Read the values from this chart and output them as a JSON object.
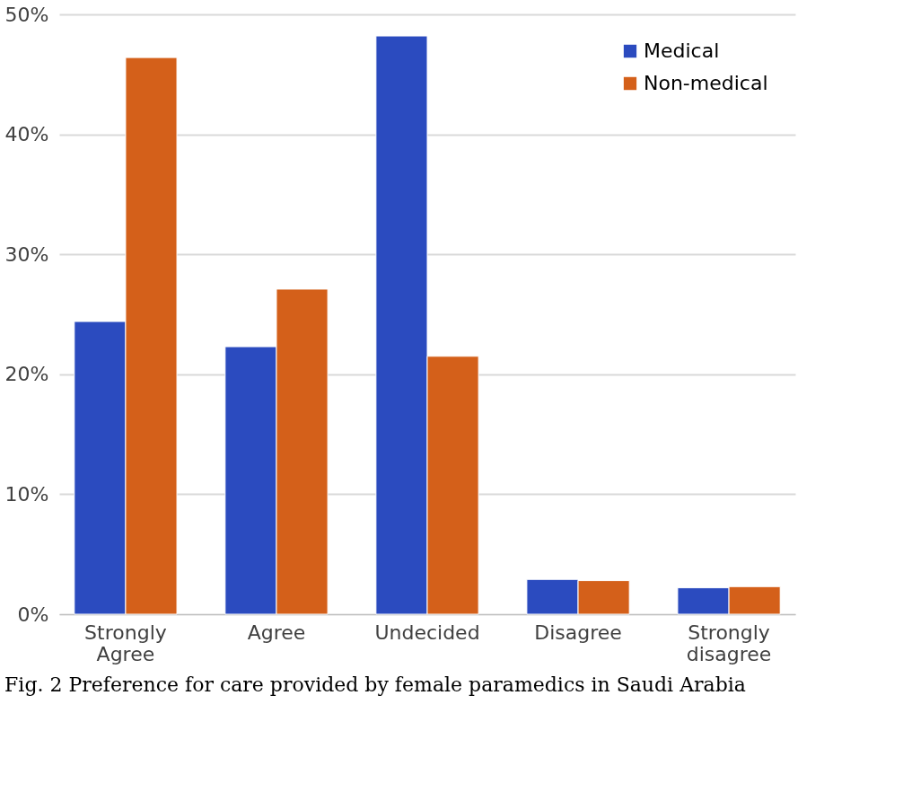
{
  "chart_data": {
    "type": "bar",
    "categories": [
      "Strongly Agree",
      "Agree",
      "Undecided",
      "Disagree",
      "Strongly disagree"
    ],
    "series": [
      {
        "name": "Medical",
        "color": "#2b4bbf",
        "values": [
          24.4,
          22.3,
          48.2,
          2.9,
          2.2
        ]
      },
      {
        "name": "Non-medical",
        "color": "#d4601a",
        "values": [
          46.4,
          27.1,
          21.5,
          2.8,
          2.3
        ]
      }
    ],
    "ylim": [
      0,
      50
    ],
    "yticks": [
      {
        "value": 0,
        "label": "0%"
      },
      {
        "value": 10,
        "label": "10%"
      },
      {
        "value": 20,
        "label": "20%"
      },
      {
        "value": 30,
        "label": "30%"
      },
      {
        "value": 40,
        "label": "40%"
      },
      {
        "value": 50,
        "label": "50%"
      }
    ],
    "grid": "y",
    "legend": "top right",
    "annotations": [
      "Fig. 2 Preference for care provided by female paramedics in Saudi Arabia"
    ]
  }
}
